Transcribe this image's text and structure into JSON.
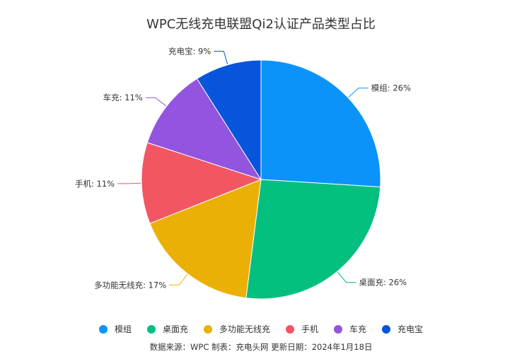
{
  "chart_data": {
    "type": "pie",
    "title": "WPC无线充电联盟Qi2认证产品类型占比",
    "categories": [
      "模组",
      "桌面充",
      "多功能无线充",
      "手机",
      "车充",
      "充电宝"
    ],
    "values": [
      26,
      26,
      17,
      11,
      11,
      9
    ],
    "labels": [
      "模组: 26%",
      "桌面充: 26%",
      "多功能无线充: 17%",
      "手机: 11%",
      "车充: 11%",
      "充电宝: 9%"
    ],
    "colors": [
      "#0C93F9",
      "#03C07E",
      "#EAB006",
      "#F25663",
      "#9354E0",
      "#0755DB"
    ],
    "legend": {
      "position": "bottom",
      "items": [
        "模组",
        "桌面充",
        "多功能无线充",
        "手机",
        "车充",
        "充电宝"
      ]
    }
  },
  "footer": {
    "text": "数据来源：WPC   制表：充电头网    更新日期：2024年1月18日"
  }
}
